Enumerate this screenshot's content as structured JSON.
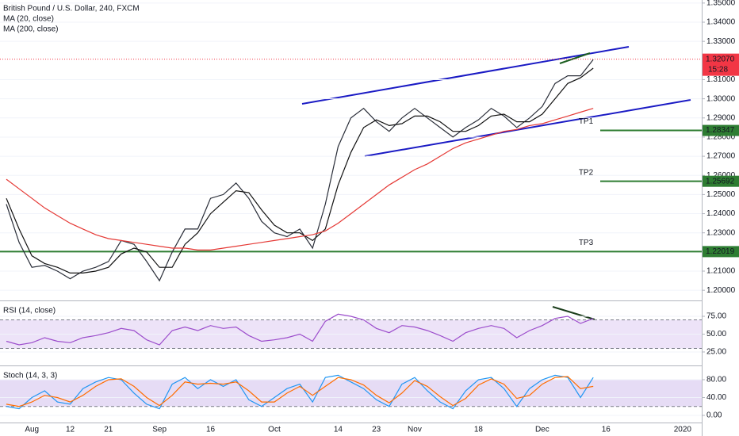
{
  "chart_data": [
    {
      "type": "line",
      "title": "British Pound / U.S. Dollar, 240, FXCM",
      "ylim": [
        1.1951,
        1.3516
      ],
      "grid": true,
      "yticks": [
        {
          "value": 1.35,
          "label": "1.35000"
        },
        {
          "value": 1.34,
          "label": "1.34000"
        },
        {
          "value": 1.33,
          "label": "1.33000"
        },
        {
          "value": 1.31,
          "label": "1.31000"
        },
        {
          "value": 1.3,
          "label": "1.30000"
        },
        {
          "value": 1.29,
          "label": "1.29000"
        },
        {
          "value": 1.28,
          "label": "1.28000"
        },
        {
          "value": 1.27,
          "label": "1.27000"
        },
        {
          "value": 1.26,
          "label": "1.26000"
        },
        {
          "value": 1.25,
          "label": "1.25000"
        },
        {
          "value": 1.24,
          "label": "1.24000"
        },
        {
          "value": 1.23,
          "label": "1.23000"
        },
        {
          "value": 1.21,
          "label": "1.21000"
        },
        {
          "value": 1.2,
          "label": "1.20000"
        }
      ],
      "series": [
        {
          "color": "#2a2e39",
          "values": [
            1.245,
            1.225,
            1.212,
            1.213,
            1.21,
            1.206,
            1.21,
            1.212,
            1.215,
            1.226,
            1.224,
            1.215,
            1.205,
            1.22,
            1.232,
            1.232,
            1.248,
            1.25,
            1.256,
            1.248,
            1.236,
            1.23,
            1.228,
            1.232,
            1.222,
            1.245,
            1.275,
            1.29,
            1.295,
            1.288,
            1.283,
            1.29,
            1.295,
            1.29,
            1.285,
            1.28,
            1.285,
            1.289,
            1.295,
            1.291,
            1.285,
            1.29,
            1.296,
            1.308,
            1.312,
            1.312,
            1.3205,
            null,
            null,
            null,
            null,
            null,
            null,
            null,
            null
          ]
        },
        {
          "name": "MA (20, close)",
          "color": "#111111",
          "values": [
            1.248,
            1.232,
            1.218,
            1.214,
            1.212,
            1.209,
            1.209,
            1.21,
            1.212,
            1.219,
            1.222,
            1.22,
            1.212,
            1.212,
            1.224,
            1.23,
            1.24,
            1.246,
            1.252,
            1.251,
            1.242,
            1.234,
            1.23,
            1.23,
            1.226,
            1.232,
            1.255,
            1.272,
            1.285,
            1.289,
            1.286,
            1.287,
            1.291,
            1.291,
            1.288,
            1.283,
            1.283,
            1.286,
            1.291,
            1.292,
            1.288,
            1.288,
            1.292,
            1.3,
            1.308,
            1.311,
            1.316,
            null,
            null,
            null,
            null,
            null,
            null,
            null,
            null
          ]
        },
        {
          "name": "MA (200, close)",
          "color": "#e53935",
          "values": [
            1.258,
            1.253,
            1.248,
            1.243,
            1.239,
            1.235,
            1.232,
            1.229,
            1.227,
            1.226,
            1.225,
            1.224,
            1.223,
            1.222,
            1.222,
            1.221,
            1.221,
            1.222,
            1.223,
            1.224,
            1.225,
            1.226,
            1.227,
            1.228,
            1.229,
            1.231,
            1.235,
            1.24,
            1.245,
            1.25,
            1.255,
            1.259,
            1.263,
            1.266,
            1.27,
            1.274,
            1.277,
            1.279,
            1.281,
            1.283,
            1.284,
            1.286,
            1.287,
            1.289,
            1.291,
            1.293,
            1.295,
            null,
            null,
            null,
            null,
            null,
            null,
            null,
            null
          ]
        }
      ],
      "last_price": {
        "value": 1.3207,
        "label": "1.32070",
        "color": "#f23645"
      },
      "countdown": "15:28",
      "levels": [
        {
          "name": "TP1",
          "value": 1.28347,
          "label": "1.28347",
          "color": "#2e7d32"
        },
        {
          "name": "TP2",
          "value": 1.25692,
          "label": "1.25692",
          "color": "#2e7d32"
        },
        {
          "name": "TP3",
          "value": 1.22019,
          "label": "1.22019",
          "color": "#2e7d32"
        }
      ]
    },
    {
      "type": "line",
      "title": "RSI (14, close)",
      "ylim": [
        7.2,
        95
      ],
      "grid": true,
      "yticks": [
        {
          "value": 75,
          "label": "75.00"
        },
        {
          "value": 50,
          "label": "50.00"
        },
        {
          "value": 25,
          "label": "25.00"
        }
      ],
      "band": [
        30,
        70
      ],
      "band_color": "#ede3f8",
      "series": [
        {
          "color": "#9c4dcc",
          "values": [
            40,
            35,
            38,
            45,
            40,
            38,
            45,
            48,
            52,
            58,
            55,
            42,
            35,
            55,
            60,
            55,
            62,
            58,
            60,
            48,
            40,
            42,
            45,
            50,
            40,
            68,
            78,
            75,
            70,
            58,
            52,
            62,
            60,
            55,
            48,
            40,
            52,
            58,
            62,
            58,
            45,
            55,
            62,
            72,
            75,
            65,
            72,
            null,
            null,
            null,
            null,
            null,
            null,
            null,
            null
          ]
        }
      ]
    },
    {
      "type": "line",
      "title": "Stoch (14, 3, 3)",
      "ylim": [
        -16,
        108.4
      ],
      "grid": true,
      "yticks": [
        {
          "value": 80,
          "label": "80.00"
        },
        {
          "value": 40,
          "label": "40.00"
        },
        {
          "value": 0,
          "label": "0.00"
        }
      ],
      "band": [
        20,
        80
      ],
      "band_color": "#e6dcf5",
      "categories": [
        null,
        null,
        "Aug",
        null,
        null,
        "12",
        null,
        null,
        "21",
        null,
        null,
        null,
        "Sep",
        null,
        null,
        null,
        "16",
        null,
        null,
        null,
        null,
        "Oct",
        null,
        null,
        null,
        null,
        "14",
        null,
        null,
        "23",
        null,
        null,
        "Nov",
        null,
        null,
        null,
        null,
        "18",
        null,
        null,
        null,
        null,
        "Dec",
        null,
        null,
        null,
        null,
        "16",
        null,
        null,
        null,
        null,
        null,
        "2020",
        null
      ],
      "series": [
        {
          "color": "#2196f3",
          "values": [
            20,
            15,
            40,
            55,
            30,
            25,
            60,
            75,
            85,
            80,
            50,
            25,
            15,
            70,
            85,
            60,
            80,
            65,
            80,
            35,
            20,
            40,
            60,
            70,
            30,
            85,
            90,
            75,
            60,
            35,
            20,
            70,
            85,
            55,
            30,
            15,
            55,
            80,
            85,
            60,
            20,
            60,
            80,
            90,
            85,
            40,
            85,
            null,
            null,
            null,
            null,
            null,
            null,
            null,
            null
          ]
        },
        {
          "color": "#ff6d00",
          "values": [
            25,
            20,
            30,
            45,
            40,
            30,
            45,
            65,
            80,
            82,
            65,
            40,
            22,
            45,
            75,
            70,
            72,
            70,
            75,
            55,
            30,
            30,
            50,
            65,
            45,
            65,
            85,
            80,
            68,
            45,
            28,
            50,
            78,
            65,
            42,
            22,
            38,
            68,
            82,
            70,
            38,
            45,
            70,
            85,
            87,
            60,
            65,
            null,
            null,
            null,
            null,
            null,
            null,
            null,
            null
          ]
        }
      ]
    }
  ]
}
